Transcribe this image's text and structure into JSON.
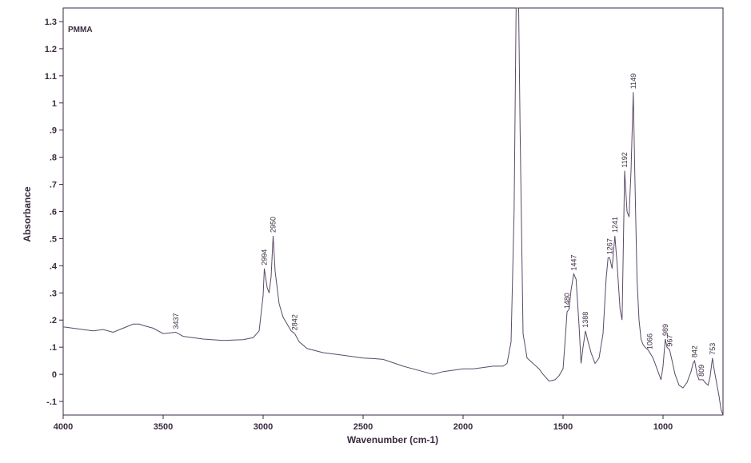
{
  "chart_data": {
    "type": "line",
    "title": "",
    "series_label": "PMMA",
    "xlabel": "Wavenumber (cm-1)",
    "ylabel": "Absorbance",
    "xlim": [
      4000,
      700
    ],
    "ylim": [
      -0.15,
      1.35
    ],
    "x_reversed": true,
    "x_ticks": [
      4000,
      3500,
      3000,
      2500,
      2000,
      1500,
      1000
    ],
    "x_tick_labels": [
      "4000",
      "3500",
      "3000",
      "2500",
      "2000",
      "1500",
      "1000"
    ],
    "y_ticks": [
      -0.1,
      0,
      0.1,
      0.2,
      0.3,
      0.4,
      0.5,
      0.6,
      0.7,
      0.8,
      0.9,
      1.0,
      1.1,
      1.2,
      1.3
    ],
    "y_tick_labels": [
      "-.1",
      "0",
      ".1",
      ".2",
      ".3",
      ".4",
      ".5",
      ".6",
      ".7",
      ".8",
      ".9",
      "1",
      "1.1",
      "1.2",
      "1.3"
    ],
    "grid": false,
    "color": "#5a4a66",
    "series": [
      {
        "x": [
          4000,
          3900,
          3850,
          3800,
          3750,
          3700,
          3650,
          3620,
          3600,
          3550,
          3500,
          3437,
          3400,
          3300,
          3200,
          3100,
          3050,
          3020,
          3000,
          2994,
          2980,
          2970,
          2960,
          2950,
          2940,
          2920,
          2900,
          2880,
          2860,
          2842,
          2820,
          2780,
          2700,
          2600,
          2500,
          2450,
          2400,
          2300,
          2200,
          2150,
          2100,
          2000,
          1950,
          1900,
          1850,
          1800,
          1780,
          1760,
          1745,
          1735,
          1728,
          1722,
          1715,
          1700,
          1680,
          1650,
          1620,
          1600,
          1570,
          1540,
          1520,
          1500,
          1490,
          1480,
          1470,
          1460,
          1447,
          1435,
          1420,
          1410,
          1400,
          1388,
          1375,
          1360,
          1340,
          1320,
          1300,
          1285,
          1275,
          1267,
          1255,
          1241,
          1230,
          1215,
          1205,
          1192,
          1180,
          1170,
          1160,
          1149,
          1140,
          1130,
          1120,
          1110,
          1100,
          1090,
          1075,
          1066,
          1050,
          1030,
          1010,
          1000,
          989,
          980,
          967,
          955,
          940,
          920,
          900,
          880,
          860,
          850,
          842,
          830,
          820,
          809,
          800,
          790,
          775,
          765,
          753,
          745,
          730,
          720,
          710,
          700
        ],
        "y": [
          0.175,
          0.165,
          0.16,
          0.165,
          0.155,
          0.17,
          0.185,
          0.185,
          0.18,
          0.17,
          0.15,
          0.155,
          0.14,
          0.13,
          0.125,
          0.128,
          0.135,
          0.16,
          0.29,
          0.39,
          0.32,
          0.3,
          0.36,
          0.51,
          0.38,
          0.26,
          0.21,
          0.185,
          0.16,
          0.15,
          0.12,
          0.095,
          0.08,
          0.07,
          0.06,
          0.058,
          0.055,
          0.03,
          0.01,
          0.0,
          0.01,
          0.02,
          0.02,
          0.025,
          0.03,
          0.03,
          0.04,
          0.12,
          0.6,
          1.35,
          1.35,
          1.35,
          0.9,
          0.15,
          0.06,
          0.04,
          0.02,
          0.0,
          -0.025,
          -0.02,
          -0.005,
          0.02,
          0.12,
          0.23,
          0.24,
          0.31,
          0.37,
          0.35,
          0.18,
          0.04,
          0.1,
          0.16,
          0.12,
          0.08,
          0.04,
          0.06,
          0.15,
          0.35,
          0.43,
          0.43,
          0.39,
          0.51,
          0.41,
          0.24,
          0.2,
          0.75,
          0.6,
          0.58,
          0.75,
          1.04,
          0.7,
          0.35,
          0.2,
          0.13,
          0.11,
          0.1,
          0.09,
          0.08,
          0.06,
          0.02,
          -0.02,
          0.03,
          0.13,
          0.1,
          0.09,
          0.05,
          0.0,
          -0.04,
          -0.05,
          -0.03,
          0.01,
          0.04,
          0.05,
          0.0,
          -0.02,
          -0.02,
          -0.02,
          -0.03,
          -0.04,
          -0.01,
          0.06,
          0.02,
          -0.04,
          -0.08,
          -0.13,
          -0.16
        ]
      }
    ],
    "peak_labels": [
      {
        "x": 3437,
        "y": 0.155,
        "text": "3437"
      },
      {
        "x": 2994,
        "y": 0.39,
        "text": "2994"
      },
      {
        "x": 2950,
        "y": 0.51,
        "text": "2950"
      },
      {
        "x": 2842,
        "y": 0.15,
        "text": "2842"
      },
      {
        "x": 1480,
        "y": 0.23,
        "text": "1480"
      },
      {
        "x": 1447,
        "y": 0.37,
        "text": "1447"
      },
      {
        "x": 1388,
        "y": 0.16,
        "text": "1388"
      },
      {
        "x": 1267,
        "y": 0.43,
        "text": "1267"
      },
      {
        "x": 1241,
        "y": 0.51,
        "text": "1241"
      },
      {
        "x": 1192,
        "y": 0.75,
        "text": "1192"
      },
      {
        "x": 1149,
        "y": 1.04,
        "text": "1149"
      },
      {
        "x": 1066,
        "y": 0.08,
        "text": "1066"
      },
      {
        "x": 989,
        "y": 0.13,
        "text": "989"
      },
      {
        "x": 967,
        "y": 0.09,
        "text": "967"
      },
      {
        "x": 842,
        "y": 0.05,
        "text": "842"
      },
      {
        "x": 809,
        "y": -0.02,
        "text": "809"
      },
      {
        "x": 753,
        "y": 0.06,
        "text": "753"
      }
    ]
  }
}
